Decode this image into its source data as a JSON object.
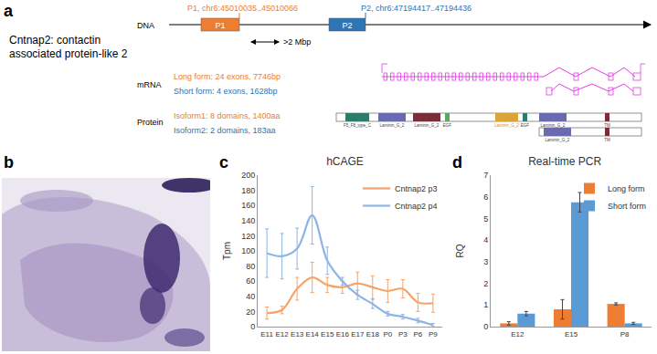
{
  "panel_labels": [
    "a",
    "b",
    "c",
    "d"
  ],
  "diagram": {
    "gene_title": "Cntnap2: contactin associated protein-like 2",
    "dna_label": "DNA",
    "promoters": [
      {
        "box": "P1",
        "label": "P1, chr6:45010035..45010066",
        "color": "#ED7D31"
      },
      {
        "box": "P2",
        "label": "P2, chr6:47194417..47194436",
        "color": "#2E75B6"
      }
    ],
    "distance": ">2 Mbp",
    "mrna_label": "mRNA",
    "transcripts": [
      {
        "label": "Long form: 24 exons, 7746bp",
        "color": "#ED7D31"
      },
      {
        "label": "Short form: 4 exons, 1628bp",
        "color": "#2E75B6"
      }
    ],
    "protein_label": "Protein",
    "isoforms": [
      {
        "label": "Isoform1: 8 domains, 1400aa",
        "color": "#ED7D31",
        "domains": [
          {
            "label": "F5_F8_type_C",
            "color": "#2E7D6B"
          },
          {
            "label": "Laminin_G_2",
            "color": "#6A6AAE"
          },
          {
            "label": "Laminin_G_2",
            "color": "#7A2E3A"
          },
          {
            "label": "EGF",
            "color": "#5BAA5B"
          },
          {
            "label": "Laminin_G_2",
            "color": "#D9A53A"
          },
          {
            "label": "EGF",
            "color": "#2E7D6B"
          },
          {
            "label": "Laminin_G_2",
            "color": "#6A6AAE"
          },
          {
            "label": "TM",
            "color": "#7A2E3A"
          }
        ]
      },
      {
        "label": "Isoform2: 2 domains, 183aa",
        "color": "#2E75B6",
        "domains": [
          {
            "label": "Laminin_G_2",
            "color": "#6A6AAE"
          },
          {
            "label": "TM",
            "color": "#7A2E3A"
          }
        ]
      }
    ]
  },
  "chart_data": [
    {
      "type": "line",
      "title": "hCAGE",
      "y_label": "Tpm",
      "categories": [
        "E11",
        "E12",
        "E13",
        "E14",
        "E15",
        "E16",
        "E17",
        "E18",
        "P0",
        "P3",
        "P6",
        "P9"
      ],
      "series": [
        {
          "name": "Cntnap2 p3",
          "color": "#F4A46A",
          "values": [
            18,
            22,
            50,
            65,
            55,
            52,
            57,
            52,
            47,
            50,
            32,
            31
          ],
          "errors": [
            8,
            5,
            15,
            20,
            10,
            8,
            15,
            15,
            15,
            12,
            12,
            12
          ]
        },
        {
          "name": "Cntnap2 p4",
          "color": "#8EB4E3",
          "values": [
            97,
            93,
            103,
            147,
            87,
            60,
            42,
            30,
            17,
            13,
            8,
            2
          ],
          "errors": [
            32,
            30,
            27,
            38,
            18,
            5,
            6,
            6,
            3,
            3,
            3,
            2
          ]
        }
      ],
      "ylim": [
        0,
        200
      ],
      "yticks": [
        0,
        20,
        40,
        60,
        80,
        100,
        120,
        140,
        160,
        180,
        200
      ],
      "grid": false,
      "legend": "upper right",
      "line_style": "smooth"
    },
    {
      "type": "bar",
      "title": "Real-time PCR",
      "y_label": "RQ",
      "categories": [
        "E12",
        "E15",
        "P8"
      ],
      "series": [
        {
          "name": "Long form",
          "color": "#ED7D31",
          "values": [
            0.15,
            0.8,
            1.05
          ],
          "errors": [
            0.08,
            0.45,
            0.05
          ]
        },
        {
          "name": "Short form",
          "color": "#5B9BD5",
          "values": [
            0.6,
            5.75,
            0.15
          ],
          "errors": [
            0.1,
            0.45,
            0.05
          ]
        }
      ],
      "ylim": [
        0,
        7
      ],
      "yticks": [
        0,
        1,
        2,
        3,
        4,
        5,
        6,
        7
      ],
      "grid": false,
      "legend": "upper right"
    }
  ]
}
